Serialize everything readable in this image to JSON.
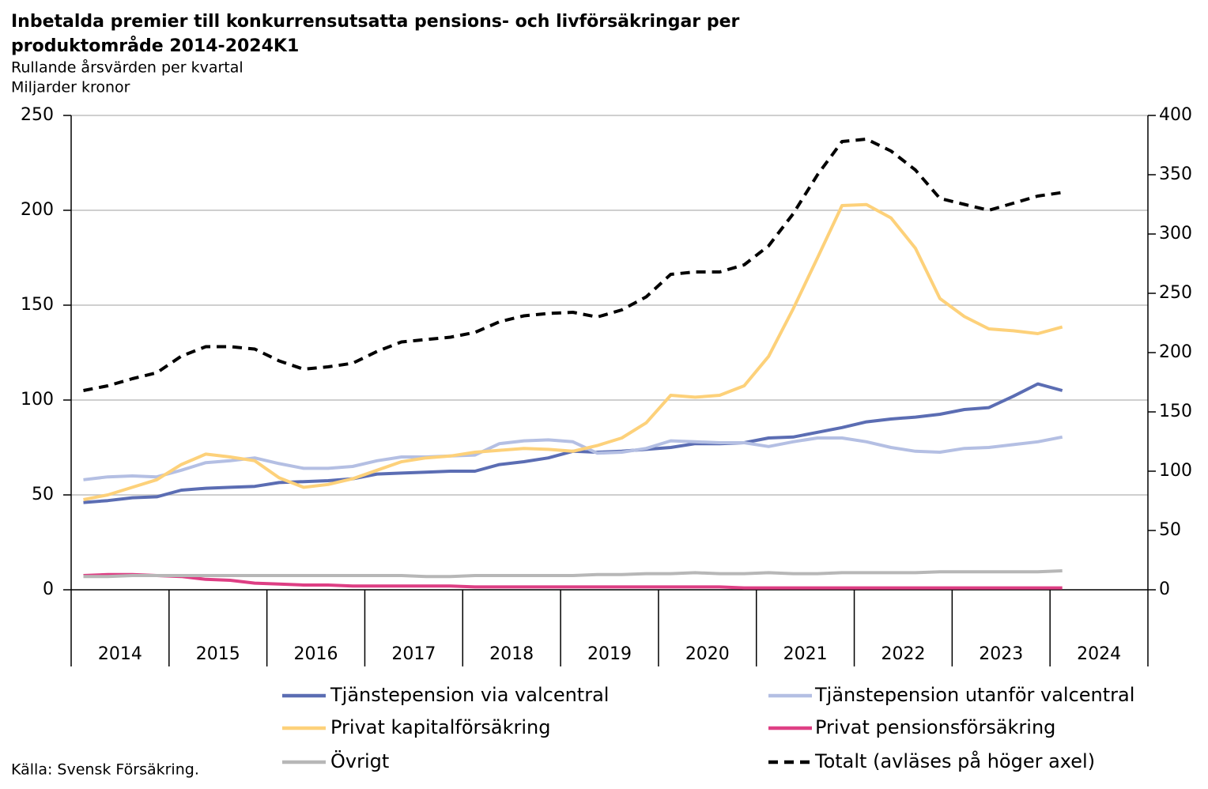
{
  "chart_data": {
    "type": "line",
    "title": [
      "Inbetalda premier till konkurrensutsatta pensions- och livförsäkringar per",
      "produktområde 2014-2024K1"
    ],
    "subtitle": "Rullande årsvärden per kvartal",
    "y_label": "Miljarder kronor",
    "source": "Källa: Svensk Försäkring.",
    "years": [
      "2014",
      "2015",
      "2016",
      "2017",
      "2018",
      "2019",
      "2020",
      "2021",
      "2022",
      "2023",
      "2024"
    ],
    "categories": [
      null,
      null,
      null,
      null,
      null,
      null,
      null,
      null,
      null,
      null,
      null,
      null,
      null,
      null,
      null,
      null,
      null,
      null,
      null,
      null,
      null,
      null,
      null,
      null,
      null,
      null,
      null,
      null,
      null,
      null,
      null,
      null,
      null,
      null,
      null,
      null,
      null,
      null,
      null,
      null,
      null
    ],
    "ylim": [
      0,
      250
    ],
    "yticks": [
      0,
      50,
      100,
      150,
      200,
      250
    ],
    "y2lim": [
      0,
      400
    ],
    "y2ticks": [
      0,
      50,
      100,
      150,
      200,
      250,
      300,
      350,
      400
    ],
    "grid": true,
    "series": [
      {
        "name": "Tjänstepension via valcentral",
        "color": "#5b6db3",
        "values": [
          46,
          47,
          48.5,
          49,
          52.5,
          53.5,
          54,
          54.5,
          56.5,
          57,
          57.5,
          58.5,
          61,
          61.5,
          62,
          62.5,
          62.5,
          66,
          67.5,
          69.5,
          73,
          72.5,
          73,
          74,
          75,
          77,
          77,
          77.5,
          80,
          80.5,
          83,
          85.5,
          88.5,
          90,
          91,
          92.5,
          95,
          96,
          102,
          108.5,
          105
        ]
      },
      {
        "name": "Tjänstepension utanför valcentral",
        "color": "#b4bfe3",
        "values": [
          58,
          59.5,
          60,
          59.5,
          63,
          67,
          68,
          69.5,
          66.5,
          64,
          64,
          65,
          68,
          70,
          70,
          70.5,
          71,
          77,
          78.5,
          79,
          78,
          72,
          72.5,
          74.5,
          78.5,
          78,
          77.5,
          77.5,
          75.5,
          78,
          80,
          80,
          78,
          75,
          73,
          72.5,
          74.5,
          75,
          76.5,
          78,
          80.5
        ]
      },
      {
        "name": "Privat kapitalförsäkring",
        "color": "#fdd17a",
        "values": [
          47.5,
          50,
          54,
          58,
          66,
          71.5,
          70,
          68,
          59,
          54,
          55.5,
          58.5,
          63,
          67.5,
          69.5,
          70.5,
          72.5,
          73.5,
          74.5,
          74,
          73,
          76,
          80,
          88,
          102.5,
          101.5,
          102.5,
          107.5,
          123,
          148,
          175,
          202.5,
          203,
          196,
          180,
          153.5,
          144,
          137.5,
          136.5,
          135,
          138.5
        ]
      },
      {
        "name": "Privat pensionsförsäkring",
        "color": "#de3f84",
        "values": [
          7.5,
          8,
          8,
          7.5,
          7,
          5.5,
          5,
          3.5,
          3,
          2.5,
          2.5,
          2,
          2,
          2,
          2,
          2,
          1.5,
          1.5,
          1.5,
          1.5,
          1.5,
          1.5,
          1.5,
          1.5,
          1.5,
          1.5,
          1.5,
          1,
          1,
          1,
          1,
          1,
          1,
          1,
          1,
          1,
          1,
          1,
          1,
          1,
          1
        ]
      },
      {
        "name": "Övrigt",
        "color": "#b7b7b7",
        "values": [
          7,
          7,
          7.5,
          7.5,
          7.5,
          7.5,
          7.5,
          7.5,
          7.5,
          7.5,
          7.5,
          7.5,
          7.5,
          7.5,
          7,
          7,
          7.5,
          7.5,
          7.5,
          7.5,
          7.5,
          8,
          8,
          8.5,
          8.5,
          9,
          8.5,
          8.5,
          9,
          8.5,
          8.5,
          9,
          9,
          9,
          9,
          9.5,
          9.5,
          9.5,
          9.5,
          9.5,
          10
        ]
      },
      {
        "name": "Totalt (avläses på höger axel)",
        "color": "#000000",
        "dashed": true,
        "axis": "y2",
        "values": [
          168,
          172,
          178,
          183,
          197,
          205,
          205,
          203,
          193,
          186,
          188,
          191,
          201,
          209,
          211,
          213,
          217,
          226,
          231,
          233,
          234,
          230,
          236,
          247,
          266,
          268,
          268,
          274,
          290,
          317,
          350,
          378,
          380,
          370,
          354,
          330,
          325,
          320,
          326,
          332,
          335
        ]
      }
    ]
  }
}
